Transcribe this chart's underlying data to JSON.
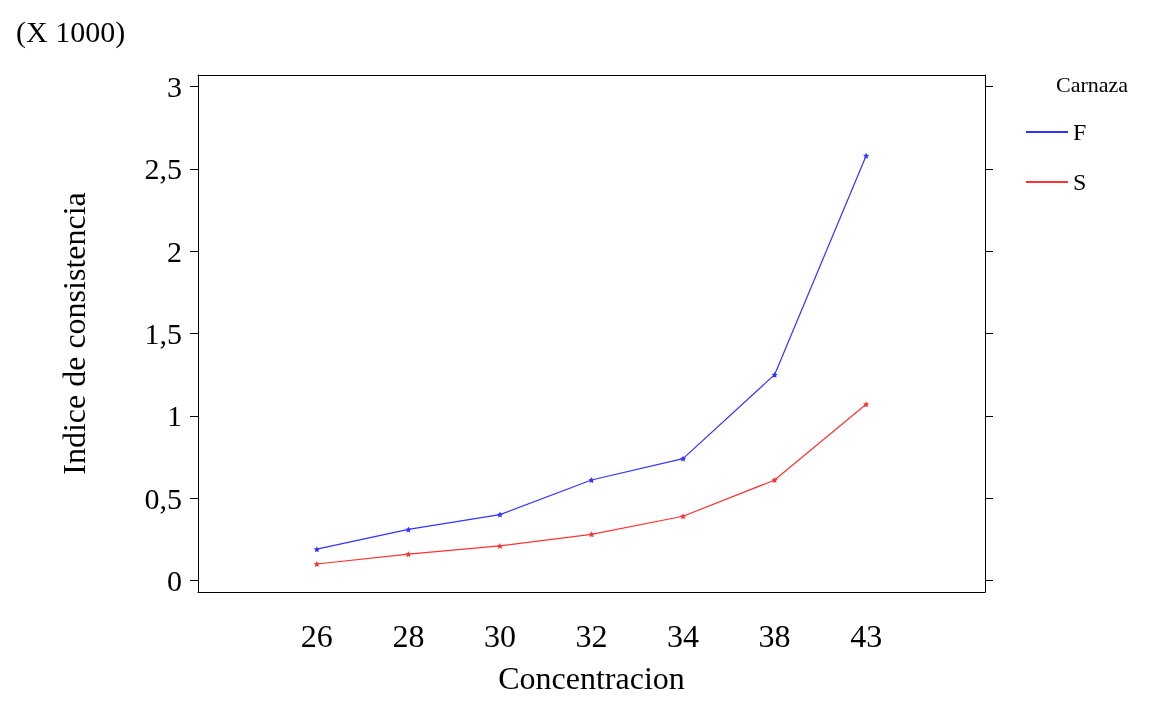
{
  "chart_data": {
    "type": "line",
    "xlabel": "Concentracion",
    "ylabel": "Indice de consistencia",
    "legend_title": "Carnaza",
    "annotations": [
      "(X 1000)"
    ],
    "categories": [
      "26",
      "28",
      "30",
      "32",
      "34",
      "38",
      "43"
    ],
    "series": [
      {
        "name": "F",
        "color": "#3333ff",
        "values": [
          0.19,
          0.31,
          0.4,
          0.61,
          0.74,
          1.25,
          2.58
        ]
      },
      {
        "name": "S",
        "color": "#ff3333",
        "values": [
          0.1,
          0.16,
          0.21,
          0.28,
          0.39,
          0.61,
          1.07
        ]
      }
    ],
    "ylim": [
      -0.07,
      3.07
    ],
    "yticks": [
      0,
      {
        "value": 0.5,
        "label": "0,5"
      },
      1,
      {
        "value": 1.5,
        "label": "1,5"
      },
      2,
      {
        "value": 2.5,
        "label": "2,5"
      },
      3
    ],
    "grid": false,
    "legend": "top right",
    "marker": "star",
    "line_style": "solid"
  }
}
